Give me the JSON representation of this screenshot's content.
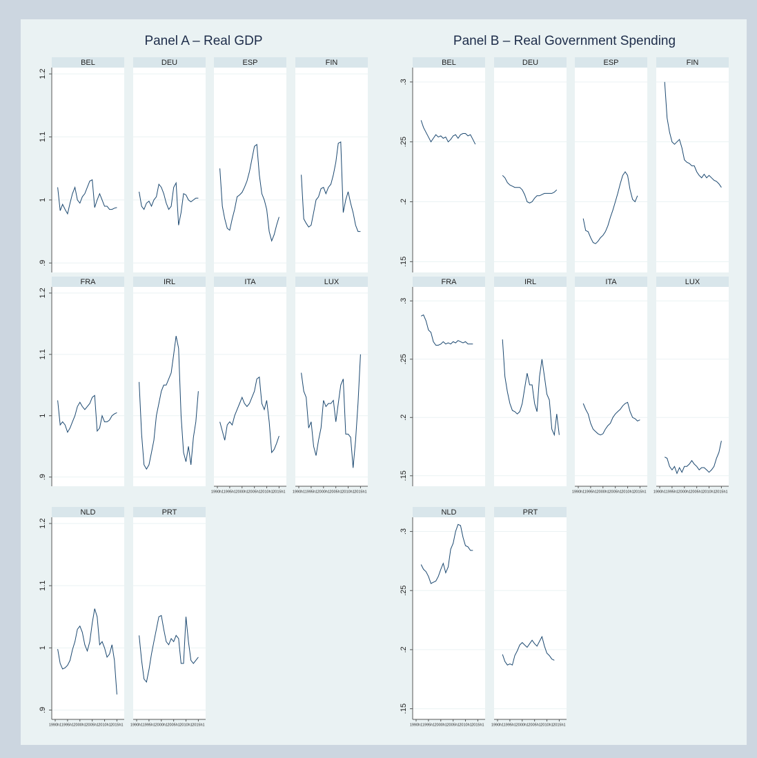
{
  "chart_data": [
    {
      "type": "line",
      "title": "Panel A – Real GDP",
      "color": "#1a476f",
      "grid": true,
      "x": [
        "1990h1",
        "1991h1",
        "1992h1",
        "1993h1",
        "1994h1",
        "1995h1",
        "1996h1",
        "1997h1",
        "1998h1",
        "1999h1",
        "2000h1",
        "2001h1",
        "2002h1",
        "2003h1",
        "2004h1",
        "2005h1",
        "2006h1",
        "2007h1",
        "2008h1",
        "2009h1",
        "2010h1",
        "2011h1",
        "2012h1",
        "2013h1",
        "2014h1",
        "2015h1",
        "2016h1"
      ],
      "xticks": [
        "1990h1",
        "1995h1",
        "2000h1",
        "2005h1",
        "2010h1",
        "2015h1"
      ],
      "ylim": [
        0.885,
        1.21
      ],
      "yticks": [
        {
          "value": 0.9,
          "label": ".9"
        },
        1,
        1.1,
        1.2
      ],
      "panels": [
        {
          "name": "BEL",
          "values": [
            null,
            1.02,
            0.983,
            0.993,
            0.985,
            0.978,
            0.995,
            1.01,
            1.02,
            1.0,
            0.995,
            1.005,
            1.01,
            1.02,
            1.03,
            1.032,
            0.988,
            1.0,
            1.01,
            1.0,
            0.99,
            0.99,
            0.985,
            0.985,
            0.987,
            0.988,
            null
          ]
        },
        {
          "name": "DEU",
          "values": [
            null,
            1.013,
            0.99,
            0.985,
            0.995,
            0.998,
            0.99,
            1.0,
            1.005,
            1.025,
            1.02,
            1.01,
            0.995,
            0.985,
            0.99,
            1.02,
            1.027,
            0.96,
            0.98,
            1.01,
            1.008,
            1.0,
            0.997,
            1.0,
            1.003,
            1.003,
            null
          ]
        },
        {
          "name": "ESP",
          "values": [
            null,
            1.05,
            0.99,
            0.97,
            0.955,
            0.952,
            0.97,
            0.985,
            1.005,
            1.008,
            1.012,
            1.02,
            1.03,
            1.045,
            1.065,
            1.085,
            1.088,
            1.04,
            1.01,
            1.0,
            0.985,
            0.95,
            0.935,
            0.945,
            0.96,
            0.973,
            null
          ]
        },
        {
          "name": "FIN",
          "values": [
            null,
            1.04,
            0.97,
            0.963,
            0.957,
            0.96,
            0.98,
            1.0,
            1.005,
            1.018,
            1.02,
            1.01,
            1.02,
            1.025,
            1.04,
            1.06,
            1.09,
            1.092,
            0.98,
            1.0,
            1.013,
            0.995,
            0.98,
            0.96,
            0.95,
            0.95,
            null
          ]
        },
        {
          "name": "FRA",
          "values": [
            null,
            1.025,
            0.985,
            0.99,
            0.985,
            0.973,
            0.98,
            0.99,
            1.0,
            1.015,
            1.022,
            1.015,
            1.01,
            1.015,
            1.02,
            1.03,
            1.033,
            0.975,
            0.98,
            1.0,
            0.99,
            0.99,
            0.993,
            1.0,
            1.003,
            1.005,
            null
          ]
        },
        {
          "name": "IRL",
          "values": [
            null,
            1.055,
            0.97,
            0.92,
            0.913,
            0.92,
            0.94,
            0.96,
            1.0,
            1.02,
            1.04,
            1.05,
            1.05,
            1.06,
            1.07,
            1.1,
            1.13,
            1.11,
            1.0,
            0.94,
            0.925,
            0.95,
            0.92,
            0.965,
            0.99,
            1.04,
            null
          ]
        },
        {
          "name": "ITA",
          "values": [
            null,
            0.99,
            0.975,
            0.96,
            0.985,
            0.99,
            0.985,
            1.0,
            1.01,
            1.02,
            1.03,
            1.02,
            1.015,
            1.02,
            1.03,
            1.04,
            1.06,
            1.063,
            1.02,
            1.01,
            1.025,
            0.99,
            0.94,
            0.945,
            0.955,
            0.967,
            null
          ]
        },
        {
          "name": "LUX",
          "values": [
            null,
            1.07,
            1.04,
            1.03,
            0.98,
            0.99,
            0.95,
            0.935,
            0.96,
            0.98,
            1.025,
            1.015,
            1.02,
            1.02,
            1.025,
            0.99,
            1.02,
            1.05,
            1.06,
            0.97,
            0.97,
            0.965,
            0.915,
            0.96,
            1.02,
            1.1,
            null
          ]
        },
        {
          "name": "NLD",
          "values": [
            null,
            0.998,
            0.975,
            0.966,
            0.968,
            0.972,
            0.98,
            0.997,
            1.01,
            1.03,
            1.035,
            1.025,
            1.005,
            0.995,
            1.01,
            1.04,
            1.063,
            1.05,
            1.005,
            1.01,
            1.0,
            0.985,
            0.99,
            1.005,
            0.98,
            0.925,
            null
          ]
        },
        {
          "name": "PRT",
          "values": [
            null,
            1.02,
            0.98,
            0.95,
            0.945,
            0.965,
            0.99,
            1.01,
            1.03,
            1.05,
            1.052,
            1.03,
            1.01,
            1.005,
            1.015,
            1.01,
            1.02,
            1.015,
            0.975,
            0.975,
            1.05,
            1.01,
            0.98,
            0.975,
            0.98,
            0.985,
            null
          ]
        }
      ]
    },
    {
      "type": "line",
      "title": "Panel B – Real Government Spending",
      "color": "#1a476f",
      "grid": true,
      "x": [
        "1990h1",
        "1991h1",
        "1992h1",
        "1993h1",
        "1994h1",
        "1995h1",
        "1996h1",
        "1997h1",
        "1998h1",
        "1999h1",
        "2000h1",
        "2001h1",
        "2002h1",
        "2003h1",
        "2004h1",
        "2005h1",
        "2006h1",
        "2007h1",
        "2008h1",
        "2009h1",
        "2010h1",
        "2011h1",
        "2012h1",
        "2013h1",
        "2014h1",
        "2015h1",
        "2016h1"
      ],
      "xticks": [
        "1990h1",
        "1995h1",
        "2000h1",
        "2005h1",
        "2010h1",
        "2015h1"
      ],
      "ylim": [
        0.141,
        0.312
      ],
      "yticks": [
        {
          "value": 0.15,
          "label": ".15"
        },
        {
          "value": 0.2,
          "label": ".2"
        },
        {
          "value": 0.25,
          "label": ".25"
        },
        {
          "value": 0.3,
          "label": ".3"
        }
      ],
      "panels": [
        {
          "name": "BEL",
          "values": [
            null,
            null,
            0.268,
            0.262,
            0.258,
            0.254,
            0.25,
            0.253,
            0.256,
            0.254,
            0.255,
            0.253,
            0.254,
            0.25,
            0.252,
            0.255,
            0.256,
            0.253,
            0.256,
            0.257,
            0.257,
            0.255,
            0.256,
            0.252,
            0.248,
            null,
            null
          ]
        },
        {
          "name": "DEU",
          "values": [
            null,
            null,
            0.222,
            0.22,
            0.216,
            0.214,
            0.213,
            0.212,
            0.212,
            0.212,
            0.21,
            0.206,
            0.2,
            0.199,
            0.2,
            0.203,
            0.205,
            0.205,
            0.206,
            0.207,
            0.207,
            0.207,
            0.207,
            0.208,
            0.21,
            null,
            null
          ]
        },
        {
          "name": "ESP",
          "values": [
            null,
            null,
            0.186,
            0.176,
            0.175,
            0.17,
            0.166,
            0.165,
            0.167,
            0.17,
            0.172,
            0.175,
            0.18,
            0.187,
            0.193,
            0.2,
            0.207,
            0.215,
            0.222,
            0.225,
            0.222,
            0.21,
            0.202,
            0.2,
            0.205,
            null,
            null
          ]
        },
        {
          "name": "FIN",
          "values": [
            null,
            null,
            0.3,
            0.27,
            0.258,
            0.25,
            0.248,
            0.25,
            0.252,
            0.245,
            0.235,
            0.233,
            0.232,
            0.23,
            0.23,
            0.225,
            0.222,
            0.22,
            0.223,
            0.22,
            0.222,
            0.22,
            0.218,
            0.217,
            0.215,
            0.212,
            null
          ]
        },
        {
          "name": "FRA",
          "values": [
            null,
            null,
            0.287,
            0.288,
            0.283,
            0.275,
            0.273,
            0.265,
            0.262,
            0.262,
            0.263,
            0.265,
            0.263,
            0.264,
            0.263,
            0.265,
            0.264,
            0.266,
            0.265,
            0.264,
            0.265,
            0.263,
            0.263,
            0.263,
            null,
            null,
            null
          ]
        },
        {
          "name": "IRL",
          "values": [
            null,
            null,
            0.267,
            0.235,
            0.222,
            0.212,
            0.206,
            0.205,
            0.203,
            0.205,
            0.212,
            0.225,
            0.238,
            0.228,
            0.228,
            0.212,
            0.205,
            0.235,
            0.25,
            0.235,
            0.22,
            0.215,
            0.19,
            0.185,
            0.203,
            0.185,
            null
          ]
        },
        {
          "name": "ITA",
          "values": [
            null,
            null,
            0.212,
            0.207,
            0.203,
            0.195,
            0.19,
            0.188,
            0.186,
            0.185,
            0.186,
            0.19,
            0.193,
            0.195,
            0.2,
            0.203,
            0.205,
            0.207,
            0.21,
            0.212,
            0.213,
            0.205,
            0.2,
            0.199,
            0.197,
            0.198,
            null
          ]
        },
        {
          "name": "LUX",
          "values": [
            null,
            null,
            0.166,
            0.165,
            0.158,
            0.155,
            0.158,
            0.152,
            0.157,
            0.153,
            0.158,
            0.158,
            0.16,
            0.163,
            0.16,
            0.158,
            0.155,
            0.157,
            0.157,
            0.155,
            0.153,
            0.155,
            0.158,
            0.165,
            0.17,
            0.18,
            null
          ]
        },
        {
          "name": "NLD",
          "values": [
            null,
            null,
            0.272,
            0.268,
            0.266,
            0.262,
            0.256,
            0.257,
            0.258,
            0.262,
            0.268,
            0.273,
            0.265,
            0.27,
            0.285,
            0.29,
            0.3,
            0.306,
            0.305,
            0.295,
            0.288,
            0.287,
            0.284,
            0.284,
            null,
            null,
            null
          ]
        },
        {
          "name": "PRT",
          "values": [
            null,
            null,
            0.196,
            0.19,
            0.187,
            0.188,
            0.187,
            0.195,
            0.199,
            0.204,
            0.206,
            0.204,
            0.202,
            0.205,
            0.208,
            0.205,
            0.203,
            0.207,
            0.211,
            0.203,
            0.197,
            0.195,
            0.192,
            0.191,
            null,
            null,
            null
          ]
        }
      ]
    }
  ]
}
